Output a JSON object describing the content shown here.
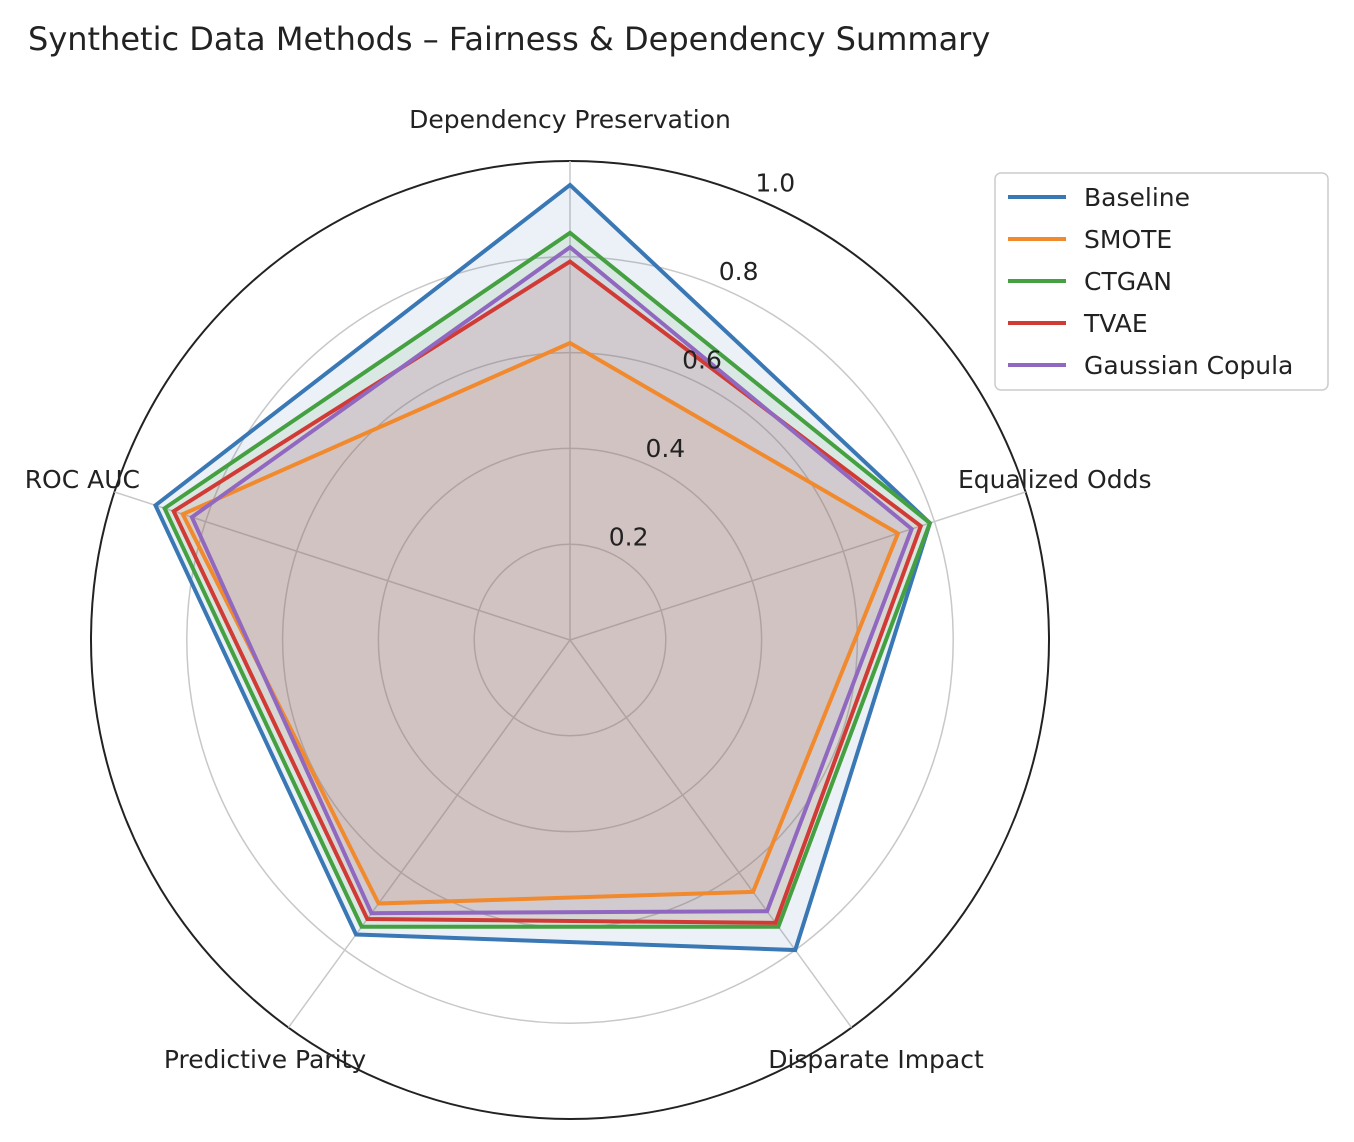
{
  "chart_data": {
    "type": "radar",
    "title": "Synthetic Data Methods – Fairness & Dependency Summary",
    "axes": [
      "Dependency Preservation",
      "Equalized Odds",
      "Disparate Impact",
      "Predictive Parity",
      "ROC AUC"
    ],
    "rlim": [
      0,
      1.0
    ],
    "rticks": [
      "0.2",
      "0.4",
      "0.6",
      "0.8",
      "1.0"
    ],
    "rtick_values": [
      0.2,
      0.4,
      0.6,
      0.8,
      1.0
    ],
    "grid": true,
    "legend_position": "top-right",
    "series": [
      {
        "name": "Baseline",
        "color": "#3a78b5",
        "values": [
          0.95,
          0.79,
          0.8,
          0.76,
          0.91
        ]
      },
      {
        "name": "SMOTE",
        "color": "#f18a2e",
        "values": [
          0.62,
          0.72,
          0.65,
          0.68,
          0.85
        ]
      },
      {
        "name": "CTGAN",
        "color": "#45a041",
        "values": [
          0.85,
          0.79,
          0.74,
          0.74,
          0.89
        ]
      },
      {
        "name": "TVAE",
        "color": "#d13b36",
        "values": [
          0.79,
          0.77,
          0.73,
          0.72,
          0.87
        ]
      },
      {
        "name": "Gaussian Copula",
        "color": "#9168bf",
        "values": [
          0.82,
          0.75,
          0.7,
          0.705,
          0.83
        ]
      }
    ]
  }
}
